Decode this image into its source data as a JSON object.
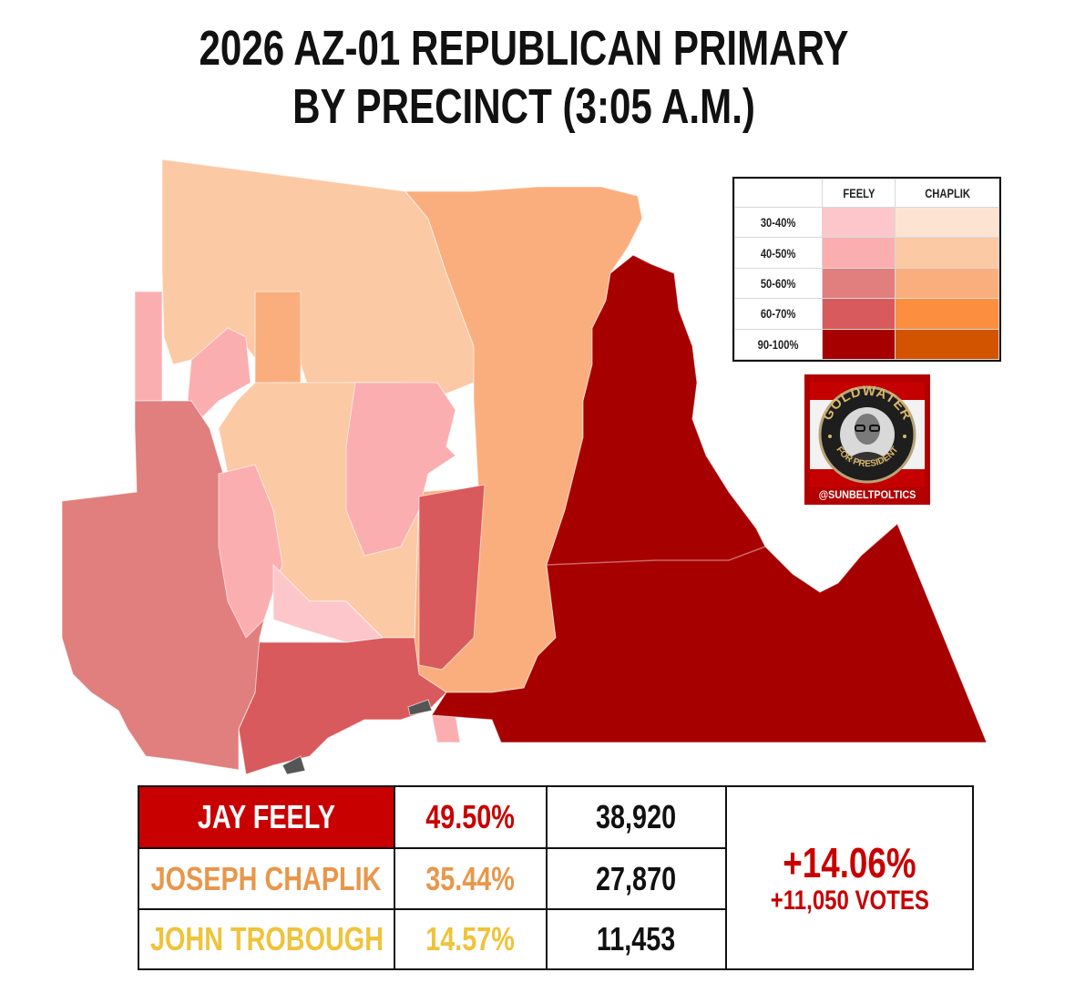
{
  "title": {
    "line1": "2026 AZ-01 REPUBLICAN PRIMARY",
    "line2": "BY PRECINCT (3:05 A.M.)"
  },
  "legend": {
    "headers": [
      "FEELY",
      "CHAPLIK"
    ],
    "rows": [
      {
        "label": "30-40%",
        "feely_color": "#fdc6cb",
        "chaplik_color": "#fde4d2"
      },
      {
        "label": "40-50%",
        "feely_color": "#fbaeb0",
        "chaplik_color": "#fcc9a5"
      },
      {
        "label": "50-60%",
        "feely_color": "#e07f7e",
        "chaplik_color": "#fbae7d"
      },
      {
        "label": "60-70%",
        "feely_color": "#d95a5c",
        "chaplik_color": "#fc8f3f"
      },
      {
        "label": "90-100%",
        "feely_color": "#a70000",
        "chaplik_color": "#d35400"
      }
    ]
  },
  "badge": {
    "top_text": "GOLDWATER",
    "bottom_text": "FOR PRESIDENT",
    "handle": "@SUNBELTPOLTICS"
  },
  "results": {
    "candidates": [
      {
        "name": "JAY FEELY",
        "pct": "49.50%",
        "votes": "38,920",
        "color": "#c80000"
      },
      {
        "name": "JOSEPH CHAPLIK",
        "pct": "35.44%",
        "votes": "27,870",
        "color": "#e8974a"
      },
      {
        "name": "JOHN TROBOUGH",
        "pct": "14.57%",
        "votes": "11,453",
        "color": "#efc33a"
      }
    ],
    "margin_pct": "+14.06%",
    "margin_votes": "+11,050 VOTES",
    "margin_color": "#c80000"
  },
  "map_colors": {
    "feely_30": "#fdc6cb",
    "feely_40": "#fbaeb0",
    "feely_50": "#e07f7e",
    "feely_60": "#d95a5c",
    "feely_90": "#a70000",
    "chaplik_30": "#fde4d2",
    "chaplik_40": "#fcc9a5",
    "chaplik_50": "#fbae7d",
    "nodata": "#555555"
  }
}
